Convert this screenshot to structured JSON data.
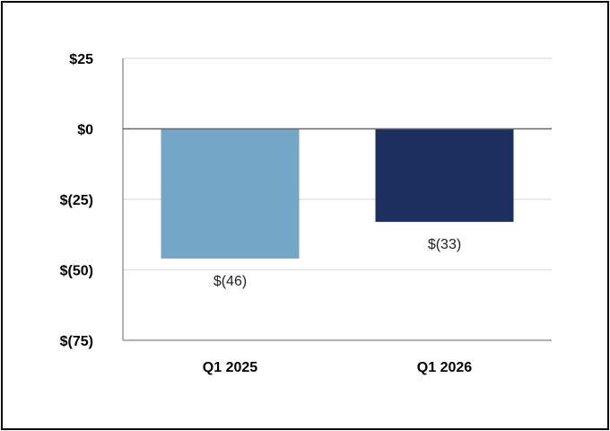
{
  "chart_data": {
    "type": "bar",
    "categories": [
      "Q1 2025",
      "Q1 2026"
    ],
    "values": [
      -46,
      -33
    ],
    "data_labels": [
      "$(46)",
      "$(33)"
    ],
    "ylim": [
      -75,
      25
    ],
    "y_ticks": [
      25,
      0,
      -25,
      -50,
      -75
    ],
    "y_tick_labels": [
      "$25",
      "$0",
      "$(25)",
      "$(50)",
      "$(75)"
    ],
    "bar_colors": [
      "#74A6C8",
      "#1D2F5E"
    ],
    "grid": true,
    "title": "",
    "xlabel": "",
    "ylabel": ""
  }
}
